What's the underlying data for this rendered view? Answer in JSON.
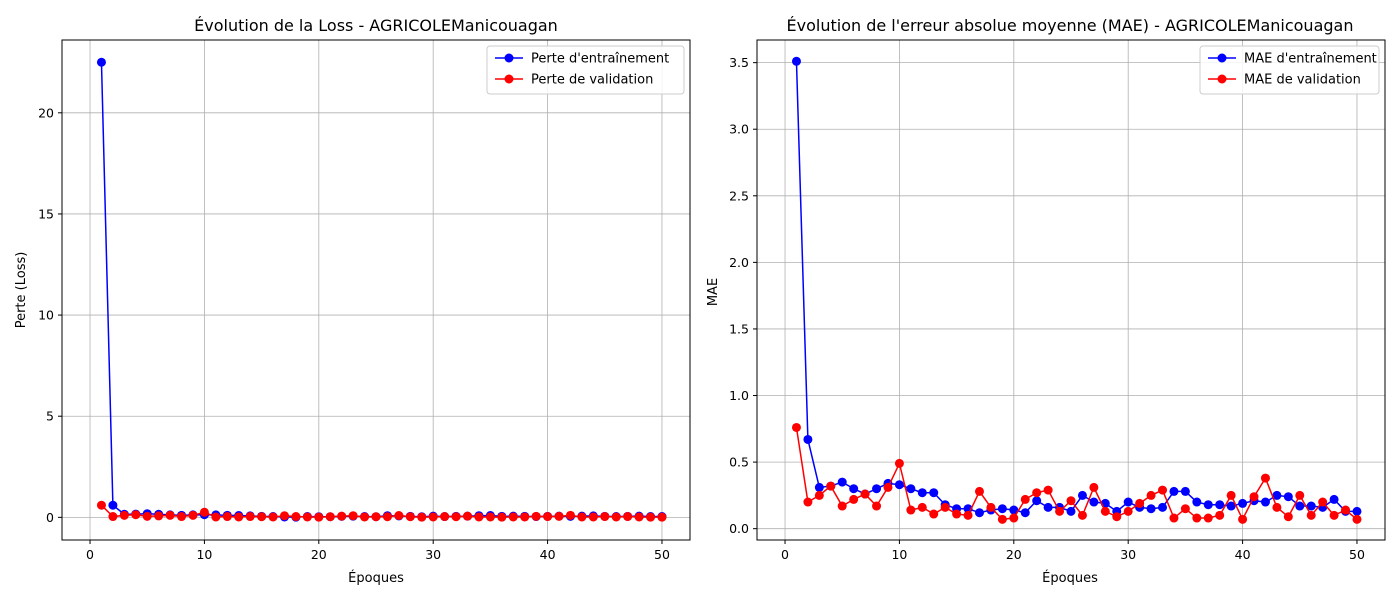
{
  "chart_data": [
    {
      "type": "line",
      "title": "Évolution de la Loss - AGRICOLEManicouagan",
      "xlabel": "Époques",
      "ylabel": "Perte (Loss)",
      "xlim": [
        -2.45,
        52.45
      ],
      "ylim": [
        -1.12,
        23.6
      ],
      "xticks": [
        0,
        10,
        20,
        30,
        40,
        50
      ],
      "yticks": [
        0,
        5,
        10,
        15,
        20
      ],
      "grid": true,
      "legend_position": "top-right",
      "x": [
        1,
        2,
        3,
        4,
        5,
        6,
        7,
        8,
        9,
        10,
        11,
        12,
        13,
        14,
        15,
        16,
        17,
        18,
        19,
        20,
        21,
        22,
        23,
        24,
        25,
        26,
        27,
        28,
        29,
        30,
        31,
        32,
        33,
        34,
        35,
        36,
        37,
        38,
        39,
        40,
        41,
        42,
        43,
        44,
        45,
        46,
        47,
        48,
        49,
        50
      ],
      "series": [
        {
          "name": "Perte d'entraînement",
          "color": "#0000ff",
          "values": [
            22.5,
            0.6,
            0.15,
            0.16,
            0.18,
            0.15,
            0.12,
            0.1,
            0.12,
            0.13,
            0.12,
            0.1,
            0.09,
            0.07,
            0.05,
            0.04,
            0.02,
            0.01,
            0.04,
            0.03,
            0.03,
            0.05,
            0.06,
            0.04,
            0.03,
            0.08,
            0.07,
            0.05,
            0.03,
            0.06,
            0.04,
            0.05,
            0.06,
            0.08,
            0.09,
            0.05,
            0.06,
            0.05,
            0.04,
            0.05,
            0.06,
            0.05,
            0.06,
            0.07,
            0.05,
            0.04,
            0.05,
            0.06,
            0.04,
            0.04
          ]
        },
        {
          "name": "Perte de validation",
          "color": "#ff0000",
          "values": [
            0.6,
            0.04,
            0.1,
            0.13,
            0.05,
            0.07,
            0.1,
            0.04,
            0.1,
            0.25,
            0.02,
            0.04,
            0.02,
            0.04,
            0.03,
            0.02,
            0.08,
            0.04,
            0.02,
            0.01,
            0.03,
            0.06,
            0.08,
            0.02,
            0.03,
            0.03,
            0.09,
            0.03,
            0.01,
            0.02,
            0.04,
            0.03,
            0.06,
            0.02,
            0.02,
            0.01,
            0.02,
            0.02,
            0.05,
            0.04,
            0.05,
            0.1,
            0.02,
            0.02,
            0.04,
            0.02,
            0.04,
            0.02,
            0.01,
            0.01
          ]
        }
      ]
    },
    {
      "type": "line",
      "title": "Évolution de l'erreur absolue moyenne (MAE) - AGRICOLEManicouagan",
      "xlabel": "Époques",
      "ylabel": "MAE",
      "xlim": [
        -2.45,
        52.45
      ],
      "ylim": [
        -0.085,
        3.67
      ],
      "xticks": [
        0,
        10,
        20,
        30,
        40,
        50
      ],
      "yticks": [
        0.0,
        0.5,
        1.0,
        1.5,
        2.0,
        2.5,
        3.0,
        3.5
      ],
      "ytick_labels": [
        "0.0",
        "0.5",
        "1.0",
        "1.5",
        "2.0",
        "2.5",
        "3.0",
        "3.5"
      ],
      "grid": true,
      "legend_position": "top-right",
      "x": [
        1,
        2,
        3,
        4,
        5,
        6,
        7,
        8,
        9,
        10,
        11,
        12,
        13,
        14,
        15,
        16,
        17,
        18,
        19,
        20,
        21,
        22,
        23,
        24,
        25,
        26,
        27,
        28,
        29,
        30,
        31,
        32,
        33,
        34,
        35,
        36,
        37,
        38,
        39,
        40,
        41,
        42,
        43,
        44,
        45,
        46,
        47,
        48,
        49,
        50
      ],
      "series": [
        {
          "name": "MAE d'entraînement",
          "color": "#0000ff",
          "values": [
            3.51,
            0.67,
            0.31,
            0.32,
            0.35,
            0.3,
            0.26,
            0.3,
            0.34,
            0.33,
            0.3,
            0.27,
            0.27,
            0.18,
            0.15,
            0.15,
            0.12,
            0.14,
            0.15,
            0.14,
            0.12,
            0.21,
            0.16,
            0.16,
            0.13,
            0.25,
            0.2,
            0.19,
            0.13,
            0.2,
            0.16,
            0.15,
            0.16,
            0.28,
            0.28,
            0.2,
            0.18,
            0.18,
            0.17,
            0.19,
            0.21,
            0.2,
            0.25,
            0.24,
            0.17,
            0.17,
            0.16,
            0.22,
            0.13,
            0.13
          ]
        },
        {
          "name": "MAE de validation",
          "color": "#ff0000",
          "values": [
            0.76,
            0.2,
            0.25,
            0.32,
            0.17,
            0.22,
            0.26,
            0.17,
            0.31,
            0.49,
            0.14,
            0.16,
            0.11,
            0.16,
            0.11,
            0.1,
            0.28,
            0.16,
            0.07,
            0.08,
            0.22,
            0.27,
            0.29,
            0.13,
            0.21,
            0.1,
            0.31,
            0.13,
            0.09,
            0.13,
            0.19,
            0.25,
            0.29,
            0.08,
            0.15,
            0.08,
            0.08,
            0.1,
            0.25,
            0.07,
            0.24,
            0.38,
            0.16,
            0.09,
            0.25,
            0.1,
            0.2,
            0.1,
            0.14,
            0.07
          ]
        }
      ]
    }
  ]
}
